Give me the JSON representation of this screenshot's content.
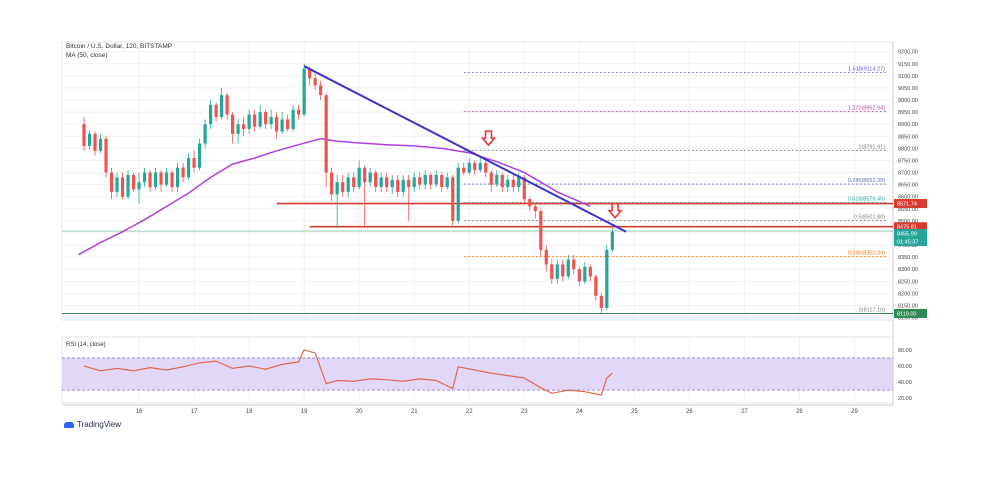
{
  "header": {
    "symbol": "Bitcoin / U.S. Dollar, 120, BITSTAMP",
    "indicator": "MA (50, close)"
  },
  "brand": {
    "name": "TradingView"
  },
  "colors": {
    "up": "#26a69a",
    "down": "#ef5350",
    "ma": "#b13fe0",
    "trend": "#3c33c9",
    "hline": "#d63b30",
    "rsi_line": "#e06a4e",
    "rsi_band": "#d9cdf5"
  },
  "chart_data": [
    {
      "type": "line",
      "title": "Bitcoin / U.S. Dollar, 120, BITSTAMP",
      "ylim": [
        8090,
        9240
      ],
      "y_ticks": [
        "9200.00",
        "9150.00",
        "9100.00",
        "9050.00",
        "9000.00",
        "8950.00",
        "8900.00",
        "8850.00",
        "8800.00",
        "8750.00",
        "8700.00",
        "8650.00",
        "8600.00",
        "8550.00",
        "8500.00",
        "8450.00",
        "8400.00",
        "8350.00",
        "8300.00",
        "8250.00",
        "8200.00",
        "8150.00",
        "8100.00"
      ],
      "x_ticks": [
        "16",
        "17",
        "18",
        "19",
        "20",
        "21",
        "22",
        "23",
        "24",
        "25",
        "26",
        "27",
        "28",
        "29"
      ],
      "price_badges": [
        {
          "label": "8571.74",
          "color": "#d63b30"
        },
        {
          "label": "8475.81",
          "color": "#d63b30"
        },
        {
          "label": "8455.99",
          "color": "#26a69a"
        },
        {
          "label": "01:45:37",
          "color": "#26a69a"
        },
        {
          "label": "8119.00",
          "color": "#2e8b57"
        }
      ],
      "fib_levels": [
        {
          "label": "1.618(9114.27)",
          "value": 9114.27,
          "color": "#6d4fd1"
        },
        {
          "label": "1.272(8952.94)",
          "value": 8952.94,
          "color": "#b0459a"
        },
        {
          "label": "1(8791.91)",
          "value": 8791.91,
          "color": "#7e7e7e"
        },
        {
          "label": "0.786(8652.39)",
          "value": 8652.39,
          "color": "#5c6bc0"
        },
        {
          "label": "0.618(8576.45)",
          "value": 8576.45,
          "color": "#26a69a"
        },
        {
          "label": "0.5(8501.80)",
          "value": 8501.8,
          "color": "#7e7e7e"
        },
        {
          "label": "0.236(8352.34)",
          "value": 8352.34,
          "color": "#f57c00"
        },
        {
          "label": "0(8117.10)",
          "value": 8117.1,
          "color": "#7e7e7e"
        }
      ],
      "horizontal_lines": [
        8571.74,
        8475.81
      ],
      "trendline": {
        "from": {
          "x": 19.0,
          "y": 9140
        },
        "to": {
          "x": 24.85,
          "y": 8455
        }
      },
      "ma_series": {
        "name": "MA (50, close)",
        "x": [
          14.9,
          15.3,
          15.7,
          16.1,
          16.5,
          16.9,
          17.3,
          17.7,
          18.1,
          18.5,
          18.9,
          19.3,
          19.6,
          20.0,
          20.5,
          21.0,
          21.5,
          22.0,
          22.5,
          23.0,
          23.3,
          23.6,
          23.9,
          24.2
        ],
        "y": [
          8360,
          8410,
          8455,
          8505,
          8560,
          8615,
          8680,
          8735,
          8760,
          8790,
          8815,
          8840,
          8830,
          8822,
          8815,
          8810,
          8800,
          8782,
          8745,
          8700,
          8660,
          8620,
          8590,
          8560
        ]
      },
      "candles": [
        {
          "x": 15.0,
          "o": 8900,
          "c": 8810,
          "h": 8930,
          "l": 8790
        },
        {
          "x": 15.1,
          "o": 8810,
          "c": 8860,
          "h": 8875,
          "l": 8795
        },
        {
          "x": 15.2,
          "o": 8860,
          "c": 8790,
          "h": 8870,
          "l": 8770
        },
        {
          "x": 15.3,
          "o": 8790,
          "c": 8840,
          "h": 8860,
          "l": 8780
        },
        {
          "x": 15.4,
          "o": 8840,
          "c": 8700,
          "h": 8850,
          "l": 8680
        },
        {
          "x": 15.5,
          "o": 8700,
          "c": 8620,
          "h": 8720,
          "l": 8590
        },
        {
          "x": 15.6,
          "o": 8620,
          "c": 8680,
          "h": 8700,
          "l": 8600
        },
        {
          "x": 15.7,
          "o": 8680,
          "c": 8600,
          "h": 8700,
          "l": 8590
        },
        {
          "x": 15.8,
          "o": 8600,
          "c": 8690,
          "h": 8710,
          "l": 8590
        },
        {
          "x": 15.9,
          "o": 8690,
          "c": 8630,
          "h": 8700,
          "l": 8620
        },
        {
          "x": 16.0,
          "o": 8630,
          "c": 8660,
          "h": 8700,
          "l": 8570
        },
        {
          "x": 16.1,
          "o": 8660,
          "c": 8700,
          "h": 8720,
          "l": 8640
        },
        {
          "x": 16.2,
          "o": 8700,
          "c": 8640,
          "h": 8710,
          "l": 8620
        },
        {
          "x": 16.3,
          "o": 8640,
          "c": 8700,
          "h": 8720,
          "l": 8630
        },
        {
          "x": 16.4,
          "o": 8700,
          "c": 8650,
          "h": 8710,
          "l": 8620
        },
        {
          "x": 16.5,
          "o": 8650,
          "c": 8700,
          "h": 8720,
          "l": 8640
        },
        {
          "x": 16.6,
          "o": 8700,
          "c": 8640,
          "h": 8710,
          "l": 8620
        },
        {
          "x": 16.7,
          "o": 8640,
          "c": 8720,
          "h": 8740,
          "l": 8620
        },
        {
          "x": 16.8,
          "o": 8720,
          "c": 8680,
          "h": 8740,
          "l": 8660
        },
        {
          "x": 16.9,
          "o": 8680,
          "c": 8760,
          "h": 8780,
          "l": 8670
        },
        {
          "x": 17.0,
          "o": 8760,
          "c": 8720,
          "h": 8790,
          "l": 8700
        },
        {
          "x": 17.1,
          "o": 8720,
          "c": 8820,
          "h": 8840,
          "l": 8710
        },
        {
          "x": 17.2,
          "o": 8820,
          "c": 8900,
          "h": 8920,
          "l": 8800
        },
        {
          "x": 17.3,
          "o": 8900,
          "c": 8980,
          "h": 9000,
          "l": 8880
        },
        {
          "x": 17.4,
          "o": 8980,
          "c": 8930,
          "h": 8990,
          "l": 8910
        },
        {
          "x": 17.5,
          "o": 8930,
          "c": 9020,
          "h": 9050,
          "l": 8920
        },
        {
          "x": 17.6,
          "o": 9020,
          "c": 8940,
          "h": 9030,
          "l": 8920
        },
        {
          "x": 17.7,
          "o": 8940,
          "c": 8860,
          "h": 8950,
          "l": 8820
        },
        {
          "x": 17.8,
          "o": 8860,
          "c": 8900,
          "h": 8920,
          "l": 8820
        },
        {
          "x": 17.9,
          "o": 8900,
          "c": 8880,
          "h": 8930,
          "l": 8850
        },
        {
          "x": 18.0,
          "o": 8880,
          "c": 8940,
          "h": 8960,
          "l": 8860
        },
        {
          "x": 18.1,
          "o": 8940,
          "c": 8890,
          "h": 8960,
          "l": 8870
        },
        {
          "x": 18.2,
          "o": 8890,
          "c": 8950,
          "h": 8980,
          "l": 8880
        },
        {
          "x": 18.3,
          "o": 8950,
          "c": 8900,
          "h": 8960,
          "l": 8880
        },
        {
          "x": 18.4,
          "o": 8900,
          "c": 8930,
          "h": 8960,
          "l": 8880
        },
        {
          "x": 18.5,
          "o": 8930,
          "c": 8870,
          "h": 8950,
          "l": 8840
        },
        {
          "x": 18.6,
          "o": 8870,
          "c": 8920,
          "h": 8950,
          "l": 8860
        },
        {
          "x": 18.7,
          "o": 8920,
          "c": 8880,
          "h": 8940,
          "l": 8870
        },
        {
          "x": 18.8,
          "o": 8880,
          "c": 8960,
          "h": 8980,
          "l": 8870
        },
        {
          "x": 18.9,
          "o": 8960,
          "c": 8940,
          "h": 8980,
          "l": 8920
        },
        {
          "x": 19.0,
          "o": 8940,
          "c": 9130,
          "h": 9150,
          "l": 8930
        },
        {
          "x": 19.1,
          "o": 9130,
          "c": 9090,
          "h": 9140,
          "l": 9060
        },
        {
          "x": 19.2,
          "o": 9090,
          "c": 9060,
          "h": 9110,
          "l": 9040
        },
        {
          "x": 19.3,
          "o": 9060,
          "c": 9020,
          "h": 9080,
          "l": 9000
        },
        {
          "x": 19.4,
          "o": 9020,
          "c": 8700,
          "h": 9030,
          "l": 8640
        },
        {
          "x": 19.5,
          "o": 8700,
          "c": 8610,
          "h": 8720,
          "l": 8580
        },
        {
          "x": 19.6,
          "o": 8610,
          "c": 8660,
          "h": 8690,
          "l": 8470
        },
        {
          "x": 19.7,
          "o": 8660,
          "c": 8620,
          "h": 8690,
          "l": 8600
        },
        {
          "x": 19.8,
          "o": 8620,
          "c": 8680,
          "h": 8700,
          "l": 8600
        },
        {
          "x": 19.9,
          "o": 8680,
          "c": 8640,
          "h": 8700,
          "l": 8620
        },
        {
          "x": 20.0,
          "o": 8640,
          "c": 8720,
          "h": 8750,
          "l": 8630
        },
        {
          "x": 20.1,
          "o": 8720,
          "c": 8660,
          "h": 8730,
          "l": 8480
        },
        {
          "x": 20.2,
          "o": 8660,
          "c": 8700,
          "h": 8720,
          "l": 8640
        },
        {
          "x": 20.3,
          "o": 8700,
          "c": 8640,
          "h": 8710,
          "l": 8620
        },
        {
          "x": 20.4,
          "o": 8640,
          "c": 8680,
          "h": 8700,
          "l": 8620
        },
        {
          "x": 20.5,
          "o": 8680,
          "c": 8640,
          "h": 8700,
          "l": 8620
        },
        {
          "x": 20.6,
          "o": 8640,
          "c": 8670,
          "h": 8690,
          "l": 8610
        },
        {
          "x": 20.7,
          "o": 8670,
          "c": 8620,
          "h": 8690,
          "l": 8600
        },
        {
          "x": 20.8,
          "o": 8620,
          "c": 8670,
          "h": 8690,
          "l": 8600
        },
        {
          "x": 20.9,
          "o": 8670,
          "c": 8640,
          "h": 8690,
          "l": 8500
        },
        {
          "x": 21.0,
          "o": 8640,
          "c": 8680,
          "h": 8700,
          "l": 8620
        },
        {
          "x": 21.1,
          "o": 8680,
          "c": 8650,
          "h": 8700,
          "l": 8630
        },
        {
          "x": 21.2,
          "o": 8650,
          "c": 8690,
          "h": 8710,
          "l": 8630
        },
        {
          "x": 21.3,
          "o": 8690,
          "c": 8650,
          "h": 8700,
          "l": 8630
        },
        {
          "x": 21.4,
          "o": 8650,
          "c": 8690,
          "h": 8710,
          "l": 8640
        },
        {
          "x": 21.5,
          "o": 8690,
          "c": 8640,
          "h": 8700,
          "l": 8620
        },
        {
          "x": 21.6,
          "o": 8640,
          "c": 8680,
          "h": 8700,
          "l": 8630
        },
        {
          "x": 21.7,
          "o": 8680,
          "c": 8500,
          "h": 8690,
          "l": 8480
        },
        {
          "x": 21.8,
          "o": 8500,
          "c": 8720,
          "h": 8740,
          "l": 8490
        },
        {
          "x": 21.9,
          "o": 8720,
          "c": 8700,
          "h": 8740,
          "l": 8690
        },
        {
          "x": 22.0,
          "o": 8700,
          "c": 8740,
          "h": 8760,
          "l": 8690
        },
        {
          "x": 22.1,
          "o": 8740,
          "c": 8710,
          "h": 8750,
          "l": 8690
        },
        {
          "x": 22.2,
          "o": 8710,
          "c": 8740,
          "h": 8760,
          "l": 8700
        },
        {
          "x": 22.3,
          "o": 8740,
          "c": 8700,
          "h": 8750,
          "l": 8680
        },
        {
          "x": 22.4,
          "o": 8700,
          "c": 8650,
          "h": 8710,
          "l": 8620
        },
        {
          "x": 22.5,
          "o": 8650,
          "c": 8690,
          "h": 8710,
          "l": 8640
        },
        {
          "x": 22.6,
          "o": 8690,
          "c": 8640,
          "h": 8700,
          "l": 8620
        },
        {
          "x": 22.7,
          "o": 8640,
          "c": 8670,
          "h": 8690,
          "l": 8620
        },
        {
          "x": 22.8,
          "o": 8670,
          "c": 8640,
          "h": 8690,
          "l": 8620
        },
        {
          "x": 22.9,
          "o": 8640,
          "c": 8680,
          "h": 8700,
          "l": 8620
        },
        {
          "x": 23.0,
          "o": 8680,
          "c": 8590,
          "h": 8690,
          "l": 8570
        },
        {
          "x": 23.1,
          "o": 8590,
          "c": 8560,
          "h": 8600,
          "l": 8540
        },
        {
          "x": 23.2,
          "o": 8560,
          "c": 8540,
          "h": 8570,
          "l": 8510
        },
        {
          "x": 23.3,
          "o": 8540,
          "c": 8380,
          "h": 8550,
          "l": 8350
        },
        {
          "x": 23.4,
          "o": 8380,
          "c": 8320,
          "h": 8400,
          "l": 8290
        },
        {
          "x": 23.5,
          "o": 8320,
          "c": 8260,
          "h": 8340,
          "l": 8240
        },
        {
          "x": 23.6,
          "o": 8260,
          "c": 8320,
          "h": 8340,
          "l": 8240
        },
        {
          "x": 23.7,
          "o": 8320,
          "c": 8270,
          "h": 8340,
          "l": 8250
        },
        {
          "x": 23.8,
          "o": 8270,
          "c": 8340,
          "h": 8360,
          "l": 8260
        },
        {
          "x": 23.9,
          "o": 8340,
          "c": 8300,
          "h": 8360,
          "l": 8280
        },
        {
          "x": 24.0,
          "o": 8300,
          "c": 8250,
          "h": 8310,
          "l": 8230
        },
        {
          "x": 24.1,
          "o": 8250,
          "c": 8310,
          "h": 8330,
          "l": 8240
        },
        {
          "x": 24.2,
          "o": 8310,
          "c": 8270,
          "h": 8320,
          "l": 8250
        },
        {
          "x": 24.3,
          "o": 8270,
          "c": 8190,
          "h": 8280,
          "l": 8170
        },
        {
          "x": 24.4,
          "o": 8190,
          "c": 8140,
          "h": 8200,
          "l": 8117
        },
        {
          "x": 24.5,
          "o": 8140,
          "c": 8380,
          "h": 8400,
          "l": 8130
        },
        {
          "x": 24.6,
          "o": 8380,
          "c": 8455,
          "h": 8470,
          "l": 8370
        }
      ],
      "annotations": [
        {
          "type": "arrow-down",
          "x": 22.35,
          "y": 8830,
          "color": "#e53935"
        },
        {
          "type": "arrow-down",
          "x": 24.65,
          "y": 8530,
          "color": "#e53935"
        }
      ]
    },
    {
      "type": "line",
      "title": "RSI (14, close)",
      "ylim": [
        14,
        96
      ],
      "y_ticks": [
        "80.00",
        "60.00",
        "40.00",
        "20.00"
      ],
      "band": [
        30,
        70
      ],
      "series": [
        {
          "x": [
            15.0,
            15.3,
            15.6,
            15.9,
            16.2,
            16.5,
            16.8,
            17.1,
            17.4,
            17.7,
            18.0,
            18.3,
            18.6,
            18.9,
            19.0,
            19.2,
            19.4,
            19.6,
            19.9,
            20.2,
            20.5,
            20.8,
            21.1,
            21.4,
            21.7,
            21.8,
            22.1,
            22.4,
            22.7,
            23.0,
            23.3,
            23.5,
            23.8,
            24.1,
            24.4,
            24.5,
            24.6
          ],
          "y": [
            60,
            54,
            57,
            54,
            58,
            55,
            59,
            64,
            66,
            57,
            60,
            56,
            62,
            65,
            80,
            76,
            38,
            42,
            41,
            44,
            43,
            41,
            44,
            42,
            32,
            59,
            55,
            51,
            48,
            45,
            33,
            26,
            30,
            28,
            24,
            45,
            51
          ]
        }
      ]
    }
  ]
}
